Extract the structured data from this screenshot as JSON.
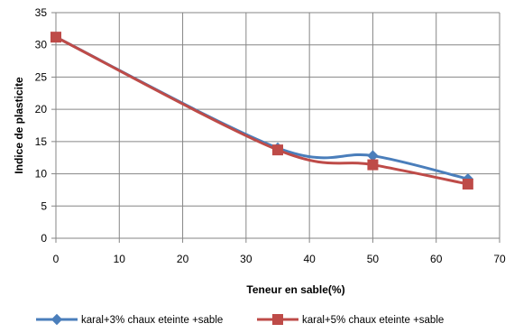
{
  "chart_data": {
    "type": "line",
    "title": "",
    "xlabel": "Teneur en sable(%)",
    "ylabel": "Indice de plasticite",
    "xlim": [
      0,
      70
    ],
    "ylim": [
      0,
      35
    ],
    "xticks": [
      0,
      10,
      20,
      30,
      40,
      50,
      60,
      70
    ],
    "yticks": [
      0,
      5,
      10,
      15,
      20,
      25,
      30,
      35
    ],
    "grid": true,
    "smooth": true,
    "legend_position": "bottom",
    "series": [
      {
        "name": "karal+3% chaux eteinte +sable",
        "color": "#4a7ebb",
        "marker": "diamond",
        "x": [
          0,
          35,
          50,
          65
        ],
        "y": [
          31.2,
          14.0,
          12.8,
          9.2
        ]
      },
      {
        "name": "karal+5% chaux eteinte +sable",
        "color": "#be4b48",
        "marker": "square",
        "x": [
          0,
          35,
          50,
          65
        ],
        "y": [
          31.2,
          13.7,
          11.4,
          8.4
        ]
      }
    ]
  }
}
